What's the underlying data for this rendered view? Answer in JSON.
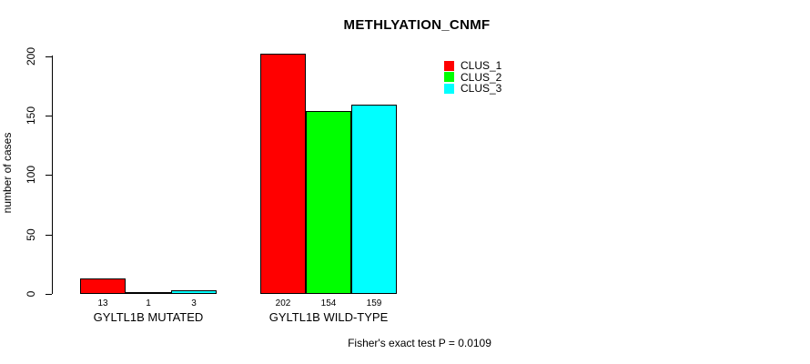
{
  "chart_data": {
    "type": "bar",
    "title": "METHLYATION_CNMF",
    "ylabel": "number of cases",
    "xlabel": "",
    "categories": [
      "GYLTL1B MUTATED",
      "GYLTL1B WILD-TYPE"
    ],
    "series": [
      {
        "name": "CLUS_1",
        "color": "#FF0000",
        "values": [
          13,
          202
        ]
      },
      {
        "name": "CLUS_2",
        "color": "#00FF00",
        "values": [
          1,
          154
        ]
      },
      {
        "name": "CLUS_3",
        "color": "#00FFFF",
        "values": [
          3,
          159
        ]
      }
    ],
    "bar_value_labels": [
      [
        13,
        1,
        3
      ],
      [
        202,
        154,
        159
      ]
    ],
    "yticks": [
      0,
      50,
      100,
      150,
      200
    ],
    "ylim": [
      0,
      202
    ],
    "grid": false,
    "legend_position": "upper-right-inside",
    "annotation": "Fisher's exact test P = 0.0109",
    "axis_color": "#000000",
    "background_color": "#FFFFFF"
  }
}
